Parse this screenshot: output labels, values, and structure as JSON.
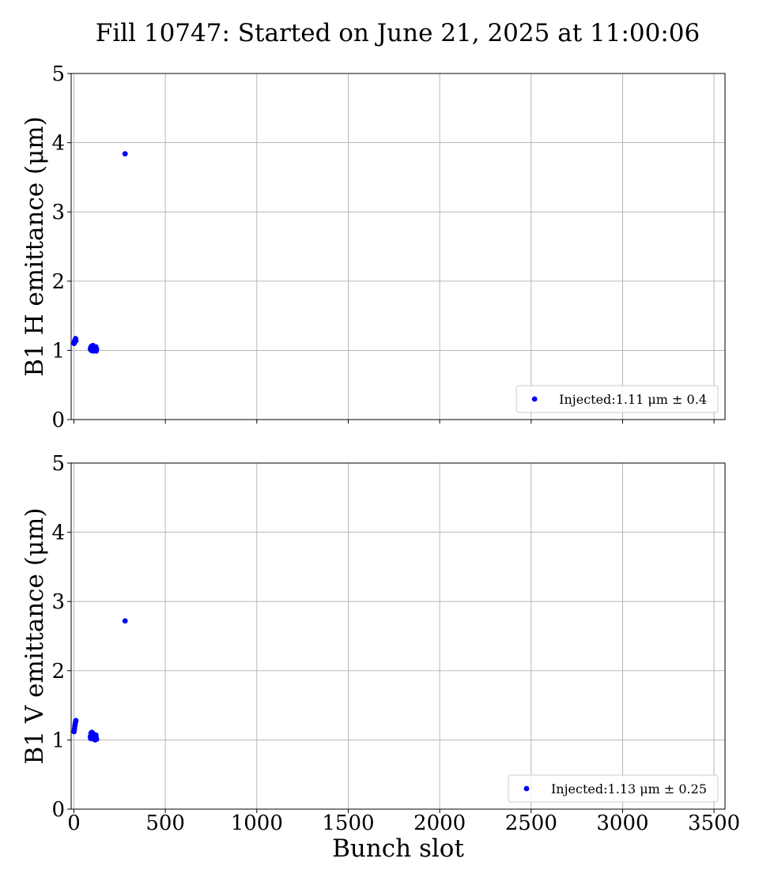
{
  "title": "Fill 10747: Started on June 21, 2025 at 11:00:06",
  "chart_data": [
    {
      "type": "scatter",
      "ylabel": "B1 H emittance (μm)",
      "xlabel": "",
      "xlim": [
        -15,
        3560
      ],
      "ylim": [
        0,
        5
      ],
      "xticks": [
        0,
        500,
        1000,
        1500,
        2000,
        2500,
        3000,
        3500
      ],
      "xtick_labels": [
        "",
        "",
        "",
        "",
        "",
        "",
        "",
        ""
      ],
      "yticks": [
        0,
        1,
        2,
        3,
        4,
        5
      ],
      "ytick_labels": [
        "0",
        "1",
        "2",
        "3",
        "4",
        "5"
      ],
      "grid": true,
      "legend_position": "lower-right",
      "color": "#0000ff",
      "series": [
        {
          "name": "Injected:1.11 μm ± 0.4",
          "points": [
            [
              1,
              1.1
            ],
            [
              3,
              1.13
            ],
            [
              5,
              1.12
            ],
            [
              7,
              1.15
            ],
            [
              9,
              1.17
            ],
            [
              11,
              1.14
            ],
            [
              90,
              1.02
            ],
            [
              92,
              1.04
            ],
            [
              94,
              1.0
            ],
            [
              96,
              1.06
            ],
            [
              98,
              1.03
            ],
            [
              100,
              1.01
            ],
            [
              102,
              1.05
            ],
            [
              104,
              1.07
            ],
            [
              106,
              0.99
            ],
            [
              108,
              1.03
            ],
            [
              110,
              1.02
            ],
            [
              112,
              1.04
            ],
            [
              114,
              1.0
            ],
            [
              116,
              1.03
            ],
            [
              118,
              1.01
            ],
            [
              120,
              1.05
            ],
            [
              122,
              0.99
            ],
            [
              124,
              1.02
            ],
            [
              280,
              3.84
            ]
          ]
        }
      ]
    },
    {
      "type": "scatter",
      "ylabel": "B1 V emittance (μm)",
      "xlabel": "Bunch slot",
      "xlim": [
        -15,
        3560
      ],
      "ylim": [
        0,
        5
      ],
      "xticks": [
        0,
        500,
        1000,
        1500,
        2000,
        2500,
        3000,
        3500
      ],
      "xtick_labels": [
        "0",
        "500",
        "1000",
        "1500",
        "2000",
        "2500",
        "3000",
        "3500"
      ],
      "yticks": [
        0,
        1,
        2,
        3,
        4,
        5
      ],
      "ytick_labels": [
        "0",
        "1",
        "2",
        "3",
        "4",
        "5"
      ],
      "grid": true,
      "legend_position": "lower-right",
      "color": "#0000ff",
      "series": [
        {
          "name": "Injected:1.13 μm ± 0.25",
          "points": [
            [
              1,
              1.12
            ],
            [
              3,
              1.16
            ],
            [
              5,
              1.2
            ],
            [
              7,
              1.23
            ],
            [
              9,
              1.26
            ],
            [
              11,
              1.28
            ],
            [
              90,
              1.05
            ],
            [
              92,
              1.02
            ],
            [
              94,
              1.1
            ],
            [
              96,
              1.07
            ],
            [
              98,
              1.11
            ],
            [
              100,
              1.03
            ],
            [
              102,
              1.08
            ],
            [
              104,
              1.04
            ],
            [
              106,
              1.09
            ],
            [
              108,
              1.06
            ],
            [
              110,
              1.01
            ],
            [
              112,
              1.05
            ],
            [
              114,
              1.02
            ],
            [
              116,
              1.0
            ],
            [
              118,
              1.04
            ],
            [
              120,
              1.07
            ],
            [
              122,
              1.03
            ],
            [
              124,
              1.01
            ],
            [
              280,
              2.72
            ]
          ]
        }
      ]
    }
  ]
}
